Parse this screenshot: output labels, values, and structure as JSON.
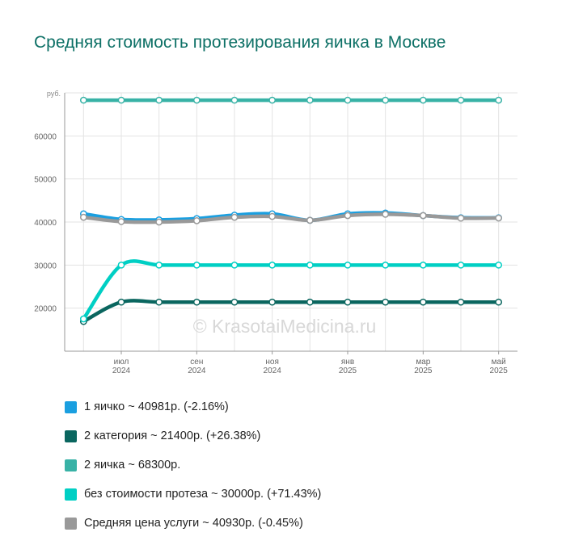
{
  "title": "Средняя стоимость протезирования яичка в Москве",
  "watermark": "© KrasotaiMedicina.ru",
  "chart_data": {
    "type": "line",
    "ylabel": "руб.",
    "ylim": [
      10000,
      70000
    ],
    "yticks": [
      20000,
      30000,
      40000,
      50000,
      60000
    ],
    "grid": true,
    "legend_position": "bottom",
    "x_count": 12,
    "x_tick_labels": [
      {
        "index": 1,
        "month": "июл",
        "year": "2024"
      },
      {
        "index": 3,
        "month": "сен",
        "year": "2024"
      },
      {
        "index": 5,
        "month": "ноя",
        "year": "2024"
      },
      {
        "index": 7,
        "month": "янв",
        "year": "2025"
      },
      {
        "index": 9,
        "month": "мар",
        "year": "2025"
      },
      {
        "index": 11,
        "month": "май",
        "year": "2025"
      }
    ],
    "series": [
      {
        "name": "1 яичко",
        "summary": "1 яичко ~ 40981р. (-2.16%)",
        "color": "#1a9fe0",
        "values": [
          41900,
          40600,
          40500,
          40800,
          41600,
          41900,
          40400,
          41900,
          42100,
          41500,
          41000,
          40981
        ]
      },
      {
        "name": "2 категория",
        "summary": "2 категория ~ 21400р. (+26.38%)",
        "color": "#0a665f",
        "values": [
          16900,
          21400,
          21400,
          21400,
          21400,
          21400,
          21400,
          21400,
          21400,
          21400,
          21400,
          21400
        ]
      },
      {
        "name": "2 яичка",
        "summary": "2 яичка ~ 68300р.",
        "color": "#38b2a6",
        "values": [
          68300,
          68300,
          68300,
          68300,
          68300,
          68300,
          68300,
          68300,
          68300,
          68300,
          68300,
          68300
        ]
      },
      {
        "name": "без стоимости протеза",
        "summary": "без стоимости протеза ~ 30000р. (+71.43%)",
        "color": "#00cfc4",
        "values": [
          17500,
          30000,
          30000,
          30000,
          30000,
          30000,
          30000,
          30000,
          30000,
          30000,
          30000,
          30000
        ]
      },
      {
        "name": "Средняя цена услуги",
        "summary": "Средняя цена услуги ~ 40930р. (-0.45%)",
        "color": "#999999",
        "values": [
          41100,
          40100,
          40000,
          40300,
          41100,
          41300,
          40400,
          41500,
          41800,
          41500,
          40900,
          40930
        ]
      }
    ]
  }
}
